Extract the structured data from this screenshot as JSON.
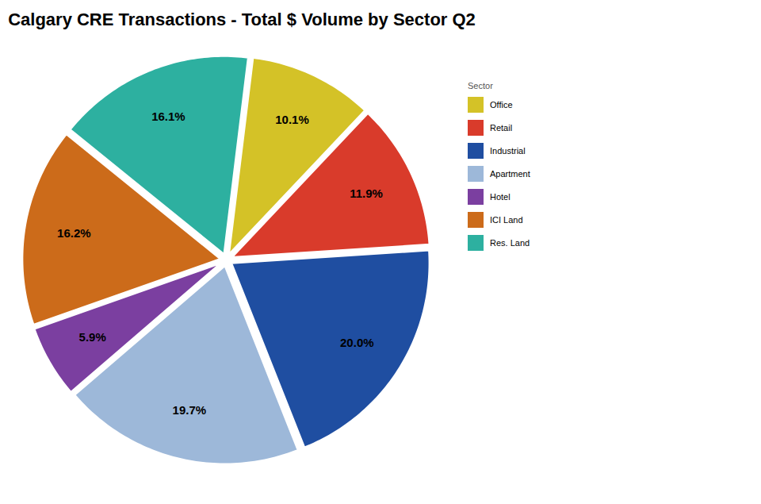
{
  "chart_data": {
    "type": "pie",
    "title": "Calgary CRE Transactions - Total $ Volume by Sector Q2",
    "legend_title": "Sector",
    "categories": [
      "Office",
      "Retail",
      "Industrial",
      "Apartment",
      "Hotel",
      "ICI Land",
      "Res. Land"
    ],
    "values": [
      10.1,
      11.9,
      20.0,
      19.7,
      5.9,
      16.2,
      16.1
    ],
    "value_labels": [
      "10.1%",
      "11.9%",
      "20.0%",
      "19.7%",
      "5.9%",
      "16.2%",
      "16.1%"
    ],
    "colors": [
      "#D4C227",
      "#D93B2B",
      "#1F4EA1",
      "#9DB8D9",
      "#7B3FA0",
      "#CC6B1A",
      "#2DB0A0"
    ],
    "data_labels": true,
    "legend": "right"
  }
}
